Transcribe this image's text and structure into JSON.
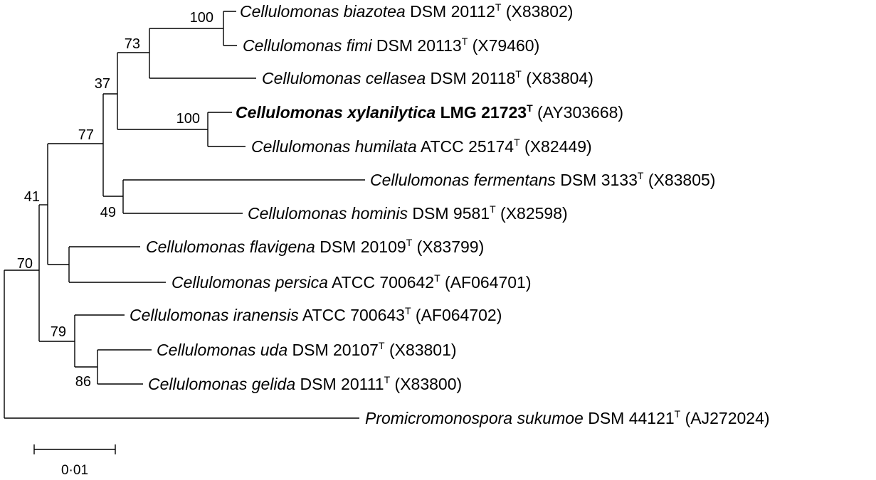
{
  "taxa": [
    {
      "genus": "Cellulomonas",
      "species": "biazotea",
      "strain": "DSM 20112",
      "superscript": "T",
      "accession": "(X83802)"
    },
    {
      "genus": "Cellulomonas",
      "species": "fimi",
      "strain": "DSM 20113",
      "superscript": "T",
      "accession": "(X79460)"
    },
    {
      "genus": "Cellulomonas",
      "species": "cellasea",
      "strain": "DSM 20118",
      "superscript": "T",
      "accession": "(X83804)"
    },
    {
      "genus": "Cellulomonas",
      "species": "xylanilytica",
      "strain": "LMG 21723",
      "superscript": "T",
      "accession": "(AY303668)",
      "highlight": true
    },
    {
      "genus": "Cellulomonas",
      "species": "humilata",
      "strain": "ATCC 25174",
      "superscript": "T",
      "accession": "(X82449)"
    },
    {
      "genus": "Cellulomonas",
      "species": "fermentans",
      "strain": "DSM 3133",
      "superscript": "T",
      "accession": "(X83805)"
    },
    {
      "genus": "Cellulomonas",
      "species": "hominis",
      "strain": "DSM 9581",
      "superscript": "T",
      "accession": "(X82598)"
    },
    {
      "genus": "Cellulomonas",
      "species": "flavigena",
      "strain": "DSM 20109",
      "superscript": "T",
      "accession": "(X83799)"
    },
    {
      "genus": "Cellulomonas",
      "species": "persica",
      "strain": "ATCC 700642",
      "superscript": "T",
      "accession": "(AF064701)"
    },
    {
      "genus": "Cellulomonas",
      "species": "iranensis",
      "strain": "ATCC 700643",
      "superscript": "T",
      "accession": "(AF064702)"
    },
    {
      "genus": "Cellulomonas",
      "species": "uda",
      "strain": "DSM 20107",
      "superscript": "T",
      "accession": "(X83801)"
    },
    {
      "genus": "Cellulomonas",
      "species": "gelida",
      "strain": "DSM 20111",
      "superscript": "T",
      "accession": "(X83800)"
    },
    {
      "genus": "Promicromonospora",
      "species": "sukumoe",
      "strain": "DSM 44121",
      "superscript": "T",
      "accession": "(AJ272024)"
    }
  ],
  "bootstrap": [
    "100",
    "73",
    "37",
    "100",
    "77",
    "49",
    "41",
    "70",
    "79",
    "86"
  ],
  "scale_bar": {
    "label": "0·01"
  }
}
